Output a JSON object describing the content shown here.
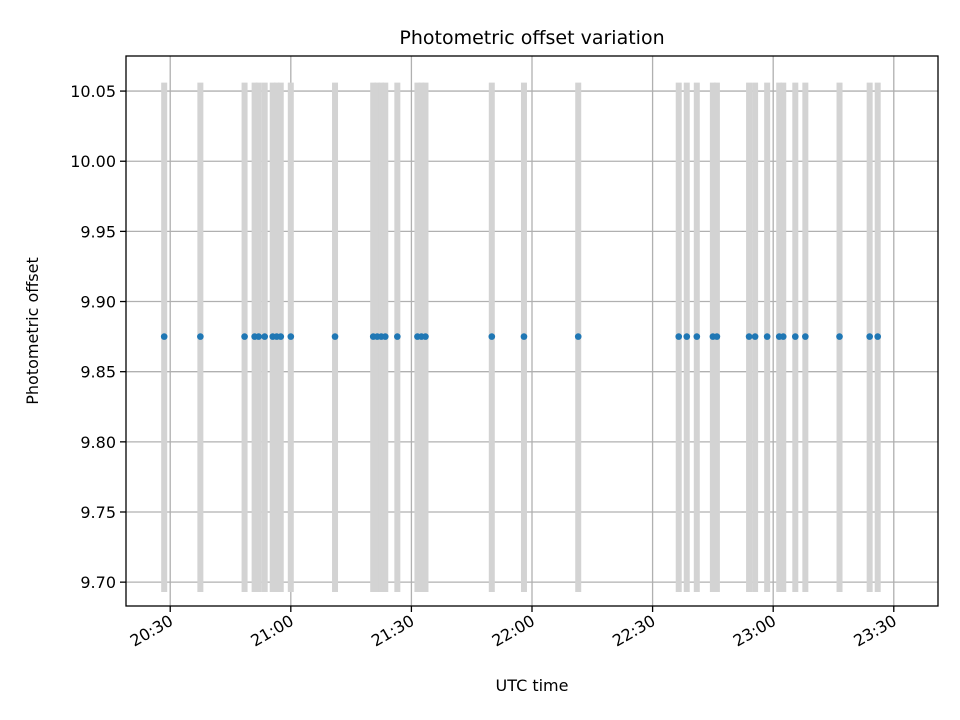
{
  "chart_data": {
    "type": "scatter",
    "title": "Photometric offset variation",
    "xlabel": "UTC time",
    "ylabel": "Photometric offset",
    "x_unit": "time of day (HH:MM, UTC)",
    "xlim": [
      "20:19",
      "23:41"
    ],
    "ylim": [
      9.683,
      10.075
    ],
    "grid": true,
    "x_ticks": [
      "20:30",
      "21:00",
      "21:30",
      "22:00",
      "22:30",
      "23:00",
      "23:30"
    ],
    "y_ticks": [
      "9.70",
      "9.75",
      "9.80",
      "9.85",
      "9.90",
      "9.95",
      "10.00",
      "10.05"
    ],
    "y_tick_values": [
      9.7,
      9.75,
      9.8,
      9.85,
      9.9,
      9.95,
      10.0,
      10.05
    ],
    "colors": {
      "points": "#1f77b4",
      "bands": "#d3d3d3",
      "grid": "#b0b0b0"
    },
    "bands": {
      "y_range": [
        9.693,
        10.056
      ],
      "x": [
        "20:28:30",
        "20:37:30",
        "20:48:30",
        "20:51:00",
        "20:52:00",
        "20:53:30",
        "20:55:30",
        "20:56:30",
        "20:57:30",
        "21:00:00",
        "21:11:00",
        "21:20:30",
        "21:21:30",
        "21:22:30",
        "21:23:30",
        "21:26:30",
        "21:31:30",
        "21:32:30",
        "21:33:30",
        "21:50:00",
        "21:58:00",
        "22:11:30",
        "22:36:30",
        "22:38:30",
        "22:41:00",
        "22:45:00",
        "22:46:00",
        "22:54:00",
        "22:55:30",
        "22:58:30",
        "23:01:30",
        "23:02:30",
        "23:05:30",
        "23:08:00",
        "23:16:30",
        "23:24:00",
        "23:26:00"
      ]
    },
    "series": [
      {
        "y": 9.875,
        "x": [
          "20:28:30",
          "20:37:30",
          "20:48:30",
          "20:51:00",
          "20:52:00",
          "20:53:30",
          "20:55:30",
          "20:56:30",
          "20:57:30",
          "21:00:00",
          "21:11:00",
          "21:20:30",
          "21:21:30",
          "21:22:30",
          "21:23:30",
          "21:26:30",
          "21:31:30",
          "21:32:30",
          "21:33:30",
          "21:50:00",
          "21:58:00",
          "22:11:30",
          "22:36:30",
          "22:38:30",
          "22:41:00",
          "22:45:00",
          "22:46:00",
          "22:54:00",
          "22:55:30",
          "22:58:30",
          "23:01:30",
          "23:02:30",
          "23:05:30",
          "23:08:00",
          "23:16:30",
          "23:24:00",
          "23:26:00"
        ]
      }
    ]
  }
}
